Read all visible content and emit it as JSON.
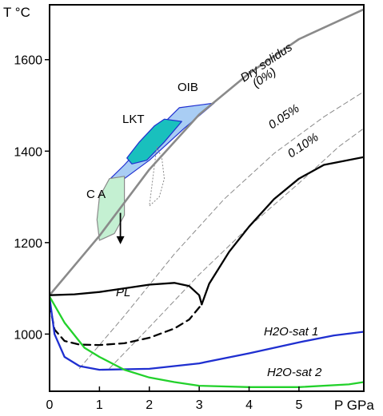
{
  "chart_data": {
    "type": "line",
    "title": "",
    "xlabel": "P GPa",
    "ylabel": "T °C",
    "xlim": [
      0,
      6.3
    ],
    "ylim": [
      875,
      1720
    ],
    "x_ticks": [
      0,
      1,
      2,
      3,
      4,
      5
    ],
    "y_ticks": [
      1000,
      1200,
      1400,
      1600
    ],
    "grid": false,
    "series": [
      {
        "name": "Dry solidus (0%)",
        "color": "#8a8a8a",
        "style": "solid",
        "points": [
          [
            0,
            1085
          ],
          [
            1,
            1215
          ],
          [
            2,
            1360
          ],
          [
            3,
            1480
          ],
          [
            4,
            1570
          ],
          [
            5,
            1645
          ],
          [
            6.3,
            1710
          ]
        ]
      },
      {
        "name": "0.05%",
        "color": "#8a8a8a",
        "style": "dashed",
        "points": [
          [
            0.6,
            925
          ],
          [
            1.5,
            1040
          ],
          [
            2.5,
            1175
          ],
          [
            3.5,
            1295
          ],
          [
            4.5,
            1395
          ],
          [
            5.5,
            1475
          ],
          [
            6.3,
            1530
          ]
        ]
      },
      {
        "name": "0.10%",
        "color": "#8a8a8a",
        "style": "dashed",
        "points": [
          [
            1.2,
            925
          ],
          [
            2,
            1015
          ],
          [
            3,
            1130
          ],
          [
            4,
            1235
          ],
          [
            5,
            1330
          ],
          [
            5.8,
            1410
          ],
          [
            6.3,
            1450
          ]
        ]
      },
      {
        "name": "PL",
        "color": "#000000",
        "style": "solid",
        "points": [
          [
            0,
            1085
          ],
          [
            0.5,
            1087
          ],
          [
            1,
            1092
          ],
          [
            1.5,
            1100
          ],
          [
            2,
            1108
          ],
          [
            2.5,
            1112
          ],
          [
            2.8,
            1105
          ],
          [
            3.0,
            1085
          ],
          [
            3.05,
            1065
          ]
        ]
      },
      {
        "name": "",
        "color": "#000000",
        "style": "solid",
        "points": [
          [
            3.05,
            1065
          ],
          [
            3.2,
            1110
          ],
          [
            3.6,
            1180
          ],
          [
            4,
            1235
          ],
          [
            4.5,
            1295
          ],
          [
            5,
            1340
          ],
          [
            5.5,
            1370
          ],
          [
            6.3,
            1387
          ]
        ]
      },
      {
        "name": "",
        "color": "#000000",
        "style": "dashed",
        "points": [
          [
            0,
            1065
          ],
          [
            0.1,
            1010
          ],
          [
            0.3,
            985
          ],
          [
            0.6,
            977
          ],
          [
            1,
            976
          ],
          [
            1.5,
            980
          ],
          [
            2,
            992
          ],
          [
            2.5,
            1012
          ],
          [
            2.8,
            1032
          ],
          [
            3.05,
            1065
          ]
        ]
      },
      {
        "name": "H2O-sat 1",
        "color": "#1f2fd0",
        "style": "solid",
        "points": [
          [
            0,
            1080
          ],
          [
            0.1,
            1000
          ],
          [
            0.3,
            950
          ],
          [
            0.6,
            930
          ],
          [
            1,
            922
          ],
          [
            2,
            924
          ],
          [
            3,
            936
          ],
          [
            4,
            958
          ],
          [
            5,
            982
          ],
          [
            5.7,
            997
          ],
          [
            6.3,
            1005
          ]
        ]
      },
      {
        "name": "H2O-sat 2",
        "color": "#22d12b",
        "style": "solid",
        "points": [
          [
            0,
            1082
          ],
          [
            0.3,
            1025
          ],
          [
            0.7,
            970
          ],
          [
            1,
            950
          ],
          [
            1.5,
            922
          ],
          [
            2,
            905
          ],
          [
            2.5,
            895
          ],
          [
            3,
            887
          ],
          [
            4,
            884
          ],
          [
            5,
            884
          ],
          [
            6,
            890
          ],
          [
            6.3,
            895
          ]
        ]
      }
    ],
    "annotations": [
      "Dry solidus",
      "(0%)",
      "0.05%",
      "0.10%",
      "PL",
      "H2O-sat 1",
      "H2O-sat 2",
      "OIB",
      "LKT",
      "C A"
    ],
    "regions": [
      {
        "label": "OIB",
        "fill": "#a9cdf4",
        "stroke": "#1f2fd0",
        "points": [
          [
            1.22,
            1340
          ],
          [
            1.5,
            1370
          ],
          [
            2.0,
            1430
          ],
          [
            2.6,
            1495
          ],
          [
            3.3,
            1505
          ],
          [
            2.7,
            1450
          ],
          [
            2.0,
            1380
          ],
          [
            1.5,
            1340
          ]
        ]
      },
      {
        "label": "LKT",
        "fill": "#19c0bd",
        "stroke": "#1f2fd0",
        "points": [
          [
            1.55,
            1385
          ],
          [
            1.8,
            1420
          ],
          [
            2.1,
            1455
          ],
          [
            2.3,
            1470
          ],
          [
            2.65,
            1465
          ],
          [
            2.3,
            1420
          ],
          [
            1.95,
            1380
          ],
          [
            1.65,
            1372
          ]
        ]
      },
      {
        "label": "C A",
        "fill": "#c4f0d2",
        "stroke": "#8a8a8a",
        "points": [
          [
            1.0,
            1205
          ],
          [
            0.95,
            1250
          ],
          [
            1.0,
            1300
          ],
          [
            1.2,
            1340
          ],
          [
            1.5,
            1345
          ],
          [
            1.5,
            1260
          ],
          [
            1.3,
            1220
          ]
        ]
      },
      {
        "label": "",
        "fill": "none",
        "stroke": "#8a8a8a",
        "points": [
          [
            2.15,
            1410
          ],
          [
            2.25,
            1385
          ],
          [
            2.3,
            1340
          ],
          [
            2.2,
            1300
          ],
          [
            2.0,
            1280
          ]
        ]
      }
    ],
    "arrow": {
      "from": [
        1.42,
        1265
      ],
      "to": [
        1.42,
        1200
      ]
    }
  }
}
